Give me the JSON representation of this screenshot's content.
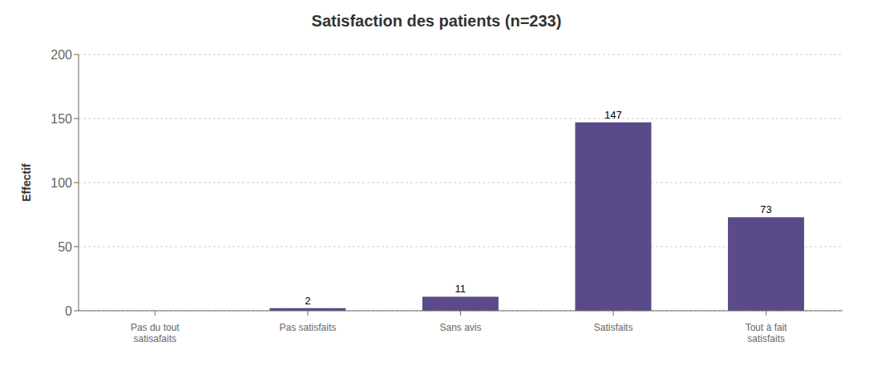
{
  "chart_data": {
    "type": "bar",
    "title": "Satisfaction des patients (n=233)",
    "ylabel": "Effectif",
    "categories": [
      "Pas du tout\nsatisafaits",
      "Pas satisfaits",
      "Sans avis",
      "Satisfaits",
      "Tout à fait\nsatisfaits"
    ],
    "values": [
      0,
      2,
      11,
      147,
      73
    ],
    "color": "#5b4a8a",
    "ylim": [
      0,
      200
    ],
    "yticks": [
      0,
      50,
      100,
      150,
      200
    ],
    "grid": true,
    "data_labels": true
  }
}
